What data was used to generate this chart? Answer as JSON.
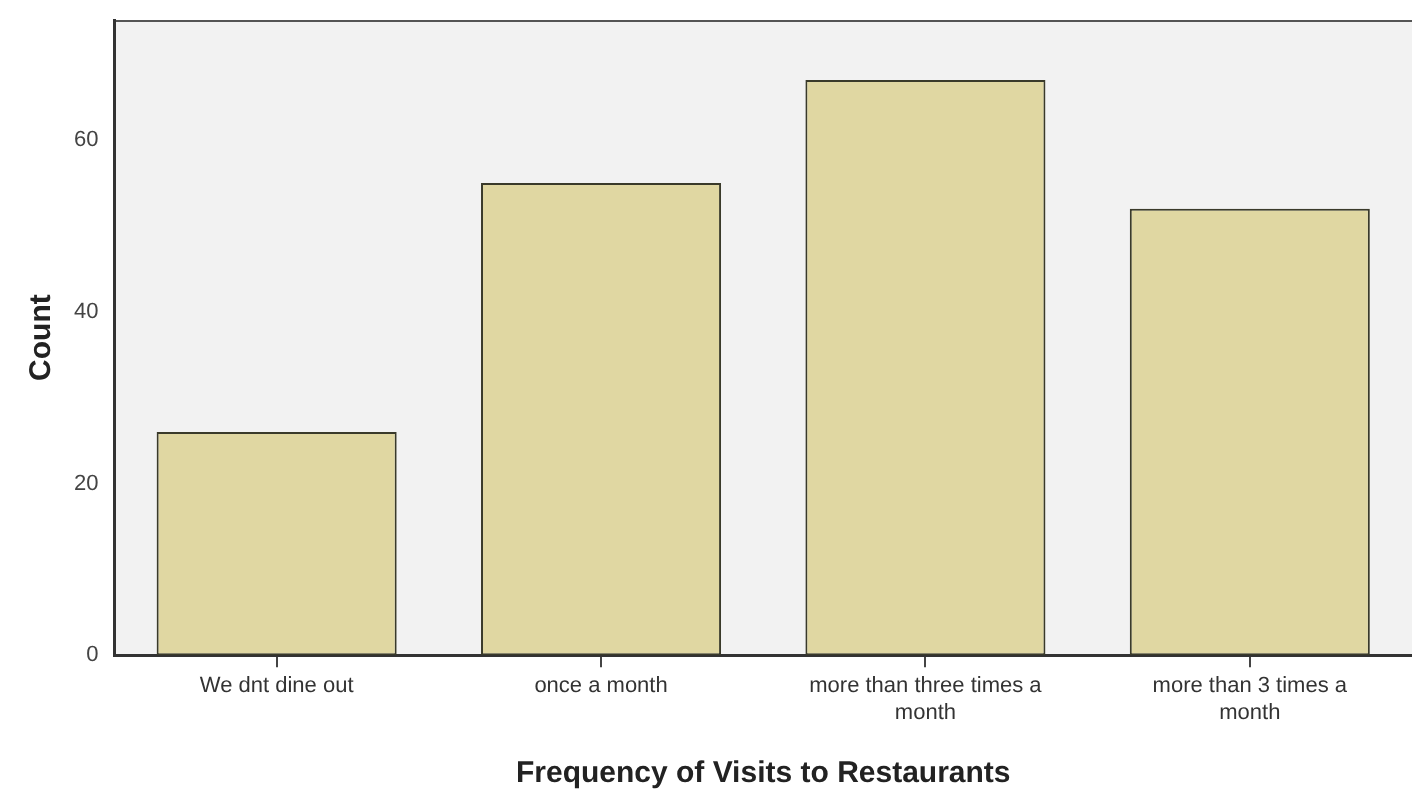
{
  "chart_data": {
    "type": "bar",
    "xlabel": "Frequency of Visits to Restaurants",
    "ylabel": "Count",
    "categories": [
      "We dnt dine out",
      "once a month",
      "more than three times a month",
      "more than 3 times a month"
    ],
    "values": [
      26,
      55,
      67,
      52
    ],
    "color": "#e0d7a2",
    "ylim": [
      0,
      74
    ],
    "yticks": [
      0,
      20,
      40,
      60
    ],
    "grid": false,
    "legend": false
  }
}
